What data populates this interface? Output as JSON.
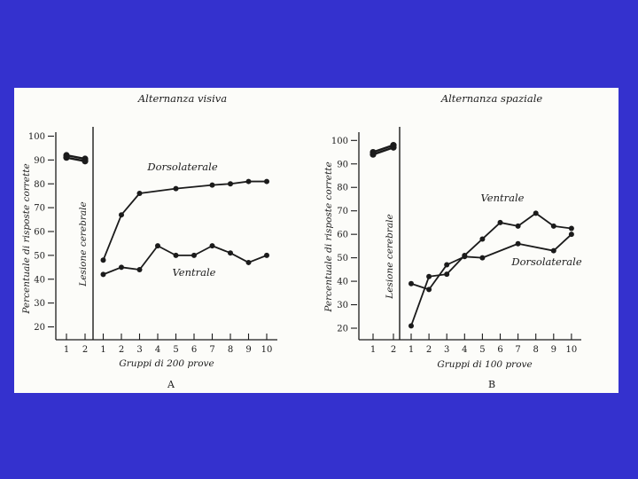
{
  "slide": {
    "background_color": "#3431ce",
    "panel_color": "#fcfcf9",
    "ink_color": "#1b1b1b"
  },
  "chart_data": [
    {
      "type": "line",
      "title": "Alternanza visiva",
      "panel_label": "A",
      "xlabel": "Gruppi di 200 prove",
      "ylabel": "Percentuale di risposte corrette",
      "lesion_label": "Lesione cerebrale",
      "ylim": [
        20,
        100
      ],
      "yticks": [
        20,
        30,
        40,
        50,
        60,
        70,
        80,
        90,
        100
      ],
      "pre_xticks": [
        "1",
        "2"
      ],
      "post_xticks": [
        "1",
        "2",
        "3",
        "4",
        "5",
        "6",
        "7",
        "8",
        "9",
        "10"
      ],
      "pre_series": [
        {
          "x": [
            1,
            2
          ],
          "y": [
            92,
            90.5
          ]
        },
        {
          "x": [
            1,
            2
          ],
          "y": [
            91,
            89.5
          ]
        }
      ],
      "series": [
        {
          "name": "Dorsolaterale",
          "x": [
            1,
            2,
            3,
            5,
            7,
            8,
            9,
            10
          ],
          "y": [
            48,
            67,
            76,
            78,
            79.5,
            80,
            81,
            81
          ]
        },
        {
          "name": "Ventrale",
          "x": [
            1,
            2,
            3,
            4,
            5,
            6,
            7,
            8,
            9,
            10
          ],
          "y": [
            42,
            45,
            44,
            54,
            50,
            50,
            54,
            51,
            47,
            50
          ]
        }
      ]
    },
    {
      "type": "line",
      "title": "Alternanza spaziale",
      "panel_label": "B",
      "xlabel": "Gruppi di 100 prove",
      "ylabel": "Percentuale di risposte corrette",
      "lesion_label": "Lesione cerebrale",
      "ylim": [
        20,
        100
      ],
      "yticks": [
        20,
        30,
        40,
        50,
        60,
        70,
        80,
        90,
        100
      ],
      "pre_xticks": [
        "1",
        "2"
      ],
      "post_xticks": [
        "1",
        "2",
        "3",
        "4",
        "5",
        "6",
        "7",
        "8",
        "9",
        "10"
      ],
      "pre_series": [
        {
          "x": [
            1,
            2
          ],
          "y": [
            95,
            98
          ]
        },
        {
          "x": [
            1,
            2
          ],
          "y": [
            94,
            97
          ]
        }
      ],
      "series": [
        {
          "name": "Ventrale",
          "x": [
            1,
            2,
            3,
            4,
            5,
            6,
            7,
            8,
            9,
            10
          ],
          "y": [
            21,
            42,
            43,
            51,
            58,
            65,
            63.5,
            69,
            63.5,
            62.5
          ]
        },
        {
          "name": "Dorsolaterale",
          "x": [
            1,
            2,
            3,
            4,
            5,
            7,
            9,
            10
          ],
          "y": [
            39,
            36.5,
            47,
            50.5,
            50,
            56,
            53,
            60
          ]
        }
      ]
    }
  ]
}
